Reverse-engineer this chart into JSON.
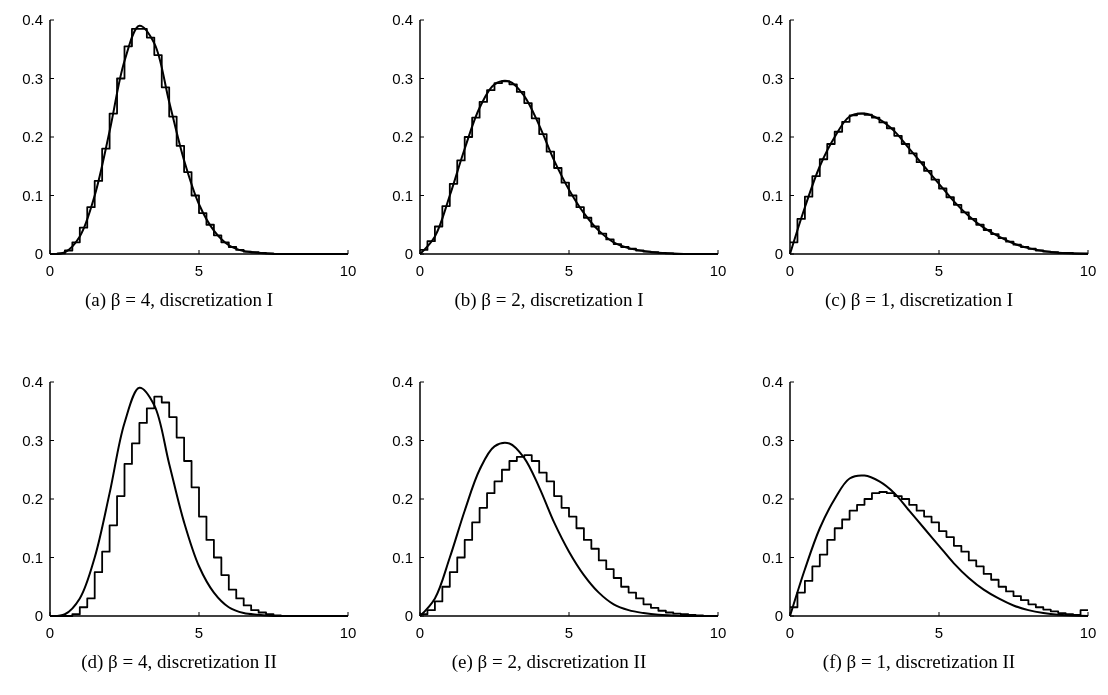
{
  "chart_data": [
    {
      "type": "line",
      "title": "(a) β = 4, discretization I",
      "xlim": [
        0,
        10
      ],
      "ylim": [
        0,
        0.4
      ],
      "xticks": [
        0,
        5,
        10
      ],
      "yticks": [
        0,
        0.1,
        0.2,
        0.3,
        0.4
      ],
      "marker": "none",
      "line_style": "solid",
      "series": [
        {
          "color": "#000000",
          "x": [
            0,
            0.5,
            1,
            1.5,
            2,
            2.5,
            3,
            3.5,
            4,
            4.5,
            5,
            5.5,
            6,
            6.5,
            7,
            7.5,
            8,
            8.5,
            9,
            9.5,
            10
          ],
          "values": [
            0,
            0.003,
            0.03,
            0.1,
            0.21,
            0.33,
            0.39,
            0.36,
            0.26,
            0.16,
            0.085,
            0.04,
            0.015,
            0.005,
            0.002,
            0,
            0,
            0,
            0,
            0,
            0
          ]
        },
        {
          "type": "step",
          "color": "#000000",
          "x": [
            0,
            0.25,
            0.5,
            0.75,
            1,
            1.25,
            1.5,
            1.75,
            2,
            2.25,
            2.5,
            2.75,
            3,
            3.25,
            3.5,
            3.75,
            4,
            4.25,
            4.5,
            4.75,
            5,
            5.25,
            5.5,
            5.75,
            6,
            6.25,
            6.5,
            6.75,
            7,
            7.25,
            7.5,
            7.75,
            8,
            8.25,
            8.5,
            8.75,
            9,
            9.25,
            9.5,
            9.75,
            10
          ],
          "values": [
            0,
            0.001,
            0.006,
            0.02,
            0.045,
            0.08,
            0.125,
            0.18,
            0.24,
            0.3,
            0.355,
            0.385,
            0.385,
            0.37,
            0.34,
            0.285,
            0.235,
            0.185,
            0.14,
            0.1,
            0.07,
            0.05,
            0.032,
            0.02,
            0.012,
            0.007,
            0.004,
            0.003,
            0.002,
            0.001,
            0,
            0,
            0,
            0,
            0,
            0,
            0,
            0,
            0,
            0,
            0
          ]
        }
      ]
    },
    {
      "type": "line",
      "title": "(b) β = 2, discretization I",
      "xlim": [
        0,
        10
      ],
      "ylim": [
        0,
        0.4
      ],
      "xticks": [
        0,
        5,
        10
      ],
      "yticks": [
        0,
        0.1,
        0.2,
        0.3,
        0.4
      ],
      "marker": "none",
      "line_style": "solid",
      "series": [
        {
          "color": "#000000",
          "x": [
            0,
            0.5,
            1,
            1.5,
            2,
            2.5,
            3,
            3.5,
            4,
            4.5,
            5,
            5.5,
            6,
            6.5,
            7,
            7.5,
            8,
            8.5,
            9,
            9.5,
            10
          ],
          "values": [
            0,
            0.03,
            0.1,
            0.18,
            0.25,
            0.29,
            0.295,
            0.27,
            0.22,
            0.16,
            0.11,
            0.07,
            0.04,
            0.02,
            0.01,
            0.005,
            0.002,
            0.001,
            0,
            0,
            0
          ]
        },
        {
          "type": "step",
          "color": "#000000",
          "x": [
            0,
            0.25,
            0.5,
            0.75,
            1,
            1.25,
            1.5,
            1.75,
            2,
            2.25,
            2.5,
            2.75,
            3,
            3.25,
            3.5,
            3.75,
            4,
            4.25,
            4.5,
            4.75,
            5,
            5.25,
            5.5,
            5.75,
            6,
            6.25,
            6.5,
            6.75,
            7,
            7.25,
            7.5,
            7.75,
            8,
            8.25,
            8.5,
            8.75,
            9,
            9.25,
            9.5,
            9.75,
            10
          ],
          "values": [
            0.007,
            0.022,
            0.047,
            0.082,
            0.12,
            0.16,
            0.2,
            0.233,
            0.26,
            0.28,
            0.292,
            0.295,
            0.29,
            0.277,
            0.258,
            0.232,
            0.205,
            0.175,
            0.147,
            0.122,
            0.1,
            0.08,
            0.062,
            0.047,
            0.035,
            0.025,
            0.017,
            0.012,
            0.009,
            0.006,
            0.004,
            0.003,
            0.002,
            0.001,
            0,
            0,
            0,
            0,
            0,
            0,
            0
          ]
        }
      ]
    },
    {
      "type": "line",
      "title": "(c) β = 1, discretization I",
      "xlim": [
        0,
        10
      ],
      "ylim": [
        0,
        0.4
      ],
      "xticks": [
        0,
        5,
        10
      ],
      "yticks": [
        0,
        0.1,
        0.2,
        0.3,
        0.4
      ],
      "marker": "none",
      "line_style": "solid",
      "series": [
        {
          "color": "#000000",
          "x": [
            0,
            0.5,
            1,
            1.5,
            2,
            2.5,
            3,
            3.5,
            4,
            4.5,
            5,
            5.5,
            6,
            6.5,
            7,
            7.5,
            8,
            8.5,
            9,
            9.5,
            10
          ],
          "values": [
            0,
            0.08,
            0.15,
            0.2,
            0.235,
            0.24,
            0.23,
            0.21,
            0.18,
            0.15,
            0.12,
            0.09,
            0.065,
            0.045,
            0.03,
            0.018,
            0.01,
            0.005,
            0.002,
            0.001,
            0
          ]
        },
        {
          "type": "step",
          "color": "#000000",
          "x": [
            0,
            0.25,
            0.5,
            0.75,
            1,
            1.25,
            1.5,
            1.75,
            2,
            2.25,
            2.5,
            2.75,
            3,
            3.25,
            3.5,
            3.75,
            4,
            4.25,
            4.5,
            4.75,
            5,
            5.25,
            5.5,
            5.75,
            6,
            6.25,
            6.5,
            6.75,
            7,
            7.25,
            7.5,
            7.75,
            8,
            8.25,
            8.5,
            8.75,
            9,
            9.25,
            9.5,
            9.75,
            10
          ],
          "values": [
            0.02,
            0.06,
            0.098,
            0.133,
            0.162,
            0.188,
            0.209,
            0.226,
            0.237,
            0.24,
            0.238,
            0.233,
            0.225,
            0.215,
            0.202,
            0.188,
            0.172,
            0.157,
            0.142,
            0.127,
            0.112,
            0.097,
            0.084,
            0.071,
            0.06,
            0.05,
            0.041,
            0.034,
            0.027,
            0.021,
            0.016,
            0.012,
            0.009,
            0.006,
            0.004,
            0.003,
            0.002,
            0.002,
            0.001,
            0.001,
            0.001
          ]
        }
      ]
    },
    {
      "type": "line",
      "title": "(d) β = 4, discretization II",
      "xlim": [
        0,
        10
      ],
      "ylim": [
        0,
        0.4
      ],
      "xticks": [
        0,
        5,
        10
      ],
      "yticks": [
        0,
        0.1,
        0.2,
        0.3,
        0.4
      ],
      "marker": "none",
      "line_style": "solid",
      "series": [
        {
          "color": "#000000",
          "x": [
            0,
            0.5,
            1,
            1.5,
            2,
            2.5,
            3,
            3.5,
            4,
            4.5,
            5,
            5.5,
            6,
            6.5,
            7,
            7.5,
            8,
            8.5,
            9,
            9.5,
            10
          ],
          "values": [
            0,
            0.003,
            0.03,
            0.1,
            0.21,
            0.33,
            0.39,
            0.36,
            0.26,
            0.16,
            0.085,
            0.04,
            0.015,
            0.005,
            0.002,
            0,
            0,
            0,
            0,
            0,
            0
          ]
        },
        {
          "type": "step",
          "color": "#000000",
          "x": [
            0,
            0.25,
            0.5,
            0.75,
            1,
            1.25,
            1.5,
            1.75,
            2,
            2.25,
            2.5,
            2.75,
            3,
            3.25,
            3.5,
            3.75,
            4,
            4.25,
            4.5,
            4.75,
            5,
            5.25,
            5.5,
            5.75,
            6,
            6.25,
            6.5,
            6.75,
            7,
            7.25,
            7.5,
            7.75,
            8,
            8.25,
            8.5,
            8.75,
            9,
            9.25,
            9.5,
            9.75,
            10
          ],
          "values": [
            0,
            0,
            0,
            0.003,
            0.015,
            0.03,
            0.075,
            0.11,
            0.155,
            0.205,
            0.26,
            0.295,
            0.33,
            0.355,
            0.375,
            0.365,
            0.34,
            0.305,
            0.265,
            0.22,
            0.17,
            0.13,
            0.1,
            0.07,
            0.045,
            0.03,
            0.018,
            0.01,
            0.006,
            0.003,
            0.001,
            0,
            0,
            0,
            0,
            0,
            0,
            0,
            0,
            0,
            0
          ]
        }
      ]
    },
    {
      "type": "line",
      "title": "(e) β = 2, discretization II",
      "xlim": [
        0,
        10
      ],
      "ylim": [
        0,
        0.4
      ],
      "xticks": [
        0,
        5,
        10
      ],
      "yticks": [
        0,
        0.1,
        0.2,
        0.3,
        0.4
      ],
      "marker": "none",
      "line_style": "solid",
      "series": [
        {
          "color": "#000000",
          "x": [
            0,
            0.5,
            1,
            1.5,
            2,
            2.5,
            3,
            3.5,
            4,
            4.5,
            5,
            5.5,
            6,
            6.5,
            7,
            7.5,
            8,
            8.5,
            9,
            9.5,
            10
          ],
          "values": [
            0,
            0.03,
            0.1,
            0.18,
            0.25,
            0.29,
            0.295,
            0.27,
            0.22,
            0.16,
            0.11,
            0.07,
            0.04,
            0.02,
            0.01,
            0.005,
            0.002,
            0.001,
            0,
            0,
            0
          ]
        },
        {
          "type": "step",
          "color": "#000000",
          "x": [
            0,
            0.25,
            0.5,
            0.75,
            1,
            1.25,
            1.5,
            1.75,
            2,
            2.25,
            2.5,
            2.75,
            3,
            3.25,
            3.5,
            3.75,
            4,
            4.25,
            4.5,
            4.75,
            5,
            5.25,
            5.5,
            5.75,
            6,
            6.25,
            6.5,
            6.75,
            7,
            7.25,
            7.5,
            7.75,
            8,
            8.25,
            8.5,
            8.75,
            9,
            9.25,
            9.5,
            9.75,
            10
          ],
          "values": [
            0.003,
            0.01,
            0.025,
            0.05,
            0.075,
            0.1,
            0.13,
            0.16,
            0.185,
            0.21,
            0.23,
            0.25,
            0.265,
            0.272,
            0.275,
            0.265,
            0.245,
            0.23,
            0.205,
            0.185,
            0.17,
            0.15,
            0.13,
            0.115,
            0.095,
            0.08,
            0.065,
            0.05,
            0.04,
            0.03,
            0.02,
            0.014,
            0.009,
            0.006,
            0.004,
            0.003,
            0.002,
            0.001,
            0,
            0,
            0
          ]
        }
      ]
    },
    {
      "type": "line",
      "title": "(f) β = 1, discretization II",
      "xlim": [
        0,
        10
      ],
      "ylim": [
        0,
        0.4
      ],
      "xticks": [
        0,
        5,
        10
      ],
      "yticks": [
        0,
        0.1,
        0.2,
        0.3,
        0.4
      ],
      "marker": "none",
      "line_style": "solid",
      "series": [
        {
          "color": "#000000",
          "x": [
            0,
            0.5,
            1,
            1.5,
            2,
            2.5,
            3,
            3.5,
            4,
            4.5,
            5,
            5.5,
            6,
            6.5,
            7,
            7.5,
            8,
            8.5,
            9,
            9.5,
            10
          ],
          "values": [
            0,
            0.08,
            0.15,
            0.2,
            0.235,
            0.24,
            0.23,
            0.21,
            0.18,
            0.15,
            0.12,
            0.09,
            0.065,
            0.045,
            0.03,
            0.018,
            0.01,
            0.005,
            0.002,
            0.001,
            0
          ]
        },
        {
          "type": "step",
          "color": "#000000",
          "x": [
            0,
            0.25,
            0.5,
            0.75,
            1,
            1.25,
            1.5,
            1.75,
            2,
            2.25,
            2.5,
            2.75,
            3,
            3.25,
            3.5,
            3.75,
            4,
            4.25,
            4.5,
            4.75,
            5,
            5.25,
            5.5,
            5.75,
            6,
            6.25,
            6.5,
            6.75,
            7,
            7.25,
            7.5,
            7.75,
            8,
            8.25,
            8.5,
            8.75,
            9,
            9.25,
            9.5,
            9.75,
            10
          ],
          "values": [
            0.015,
            0.04,
            0.06,
            0.085,
            0.105,
            0.13,
            0.15,
            0.165,
            0.18,
            0.19,
            0.2,
            0.21,
            0.212,
            0.21,
            0.205,
            0.2,
            0.19,
            0.18,
            0.17,
            0.16,
            0.145,
            0.135,
            0.12,
            0.11,
            0.095,
            0.085,
            0.072,
            0.062,
            0.05,
            0.042,
            0.034,
            0.027,
            0.02,
            0.015,
            0.011,
            0.008,
            0.005,
            0.003,
            0.002,
            0.01,
            0.01
          ]
        }
      ]
    }
  ]
}
